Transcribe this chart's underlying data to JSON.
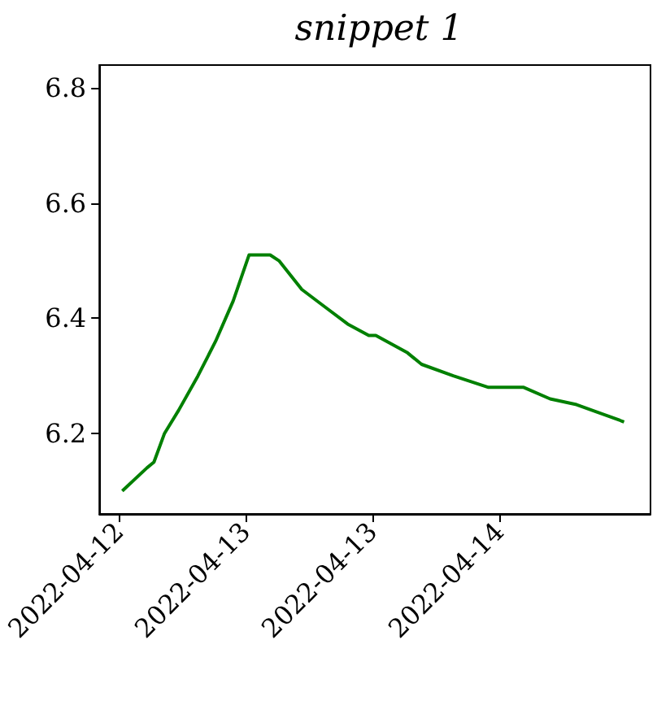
{
  "chart_data": {
    "type": "line",
    "title": "snippet 1",
    "x": [
      "2022-04-12T12:20",
      "2022-04-12T14:40",
      "2022-04-12T15:20",
      "2022-04-12T16:20",
      "2022-04-12T17:40",
      "2022-04-12T19:30",
      "2022-04-12T21:10",
      "2022-04-12T22:50",
      "2022-04-13T00:20",
      "2022-04-13T02:20",
      "2022-04-13T03:10",
      "2022-04-13T05:20",
      "2022-04-13T07:30",
      "2022-04-13T09:40",
      "2022-04-13T11:40",
      "2022-04-13T12:20",
      "2022-04-13T15:20",
      "2022-04-13T16:40",
      "2022-04-13T19:40",
      "2022-04-13T23:00",
      "2022-04-14T01:20",
      "2022-04-14T02:20",
      "2022-04-14T04:50",
      "2022-04-14T07:20",
      "2022-04-14T11:50"
    ],
    "series": [
      {
        "color": "#008000",
        "values": [
          6.1,
          6.14,
          6.15,
          6.2,
          6.24,
          6.3,
          6.36,
          6.43,
          6.51,
          6.51,
          6.5,
          6.45,
          6.42,
          6.39,
          6.37,
          6.37,
          6.34,
          6.32,
          6.3,
          6.28,
          6.28,
          6.28,
          6.26,
          6.25,
          6.22
        ]
      }
    ],
    "xlim": [
      "2022-04-12T10:10",
      "2022-04-14T14:20"
    ],
    "xticks": [
      {
        "value": "2022-04-12T12:00",
        "label": "2022-04-12"
      },
      {
        "value": "2022-04-13T00:00",
        "label": "2022-04-13"
      },
      {
        "value": "2022-04-13T12:00",
        "label": "2022-04-13"
      },
      {
        "value": "2022-04-14T00:00",
        "label": "2022-04-14"
      }
    ],
    "ylim": [
      6.06,
      6.84
    ],
    "yticks": [
      6.2,
      6.4,
      6.6,
      6.8
    ],
    "grid": false,
    "marker": "none",
    "line_style": "solid"
  }
}
